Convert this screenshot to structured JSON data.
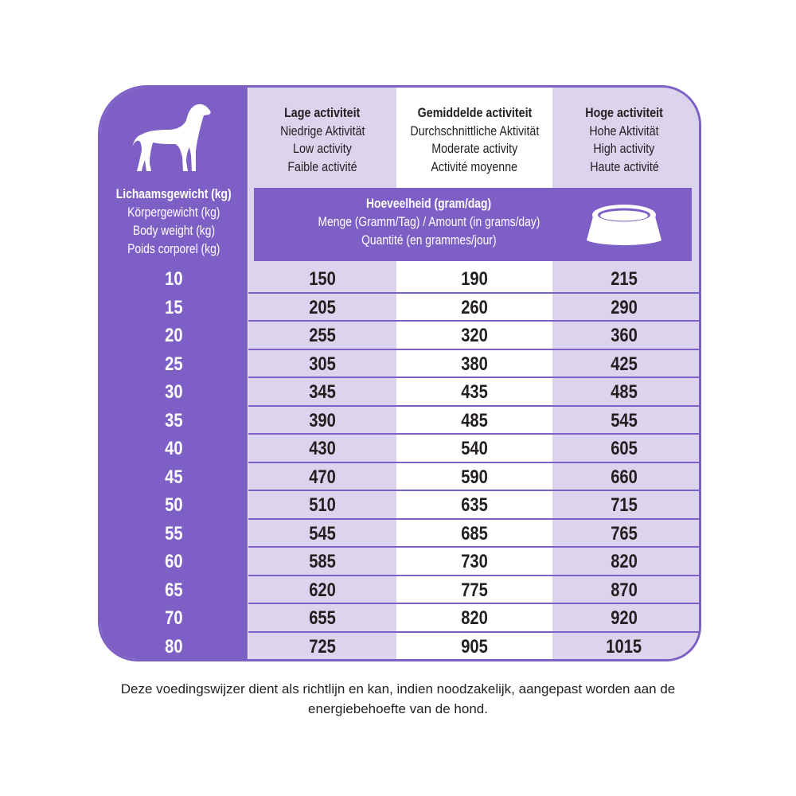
{
  "columns": [
    {
      "title": "Lage activiteit",
      "lines": [
        "Niedrige Aktivität",
        "Low activity",
        "Faible activité"
      ]
    },
    {
      "title": "Gemiddelde activiteit",
      "lines": [
        "Durchschnittliche Aktivität",
        "Moderate activity",
        "Activité moyenne"
      ]
    },
    {
      "title": "Hoge activiteit",
      "lines": [
        "Hohe Aktivität",
        "High activity",
        "Haute activité"
      ]
    }
  ],
  "weight_header": {
    "title": "Lichaamsgewicht (kg)",
    "lines": [
      "Körpergewicht (kg)",
      "Body weight (kg)",
      "Poids corporel (kg)"
    ]
  },
  "amount_header": {
    "title": "Hoeveelheid (gram/dag)",
    "lines": [
      "Menge (Gramm/Tag) / Amount (in grams/day)",
      "Quantité (en grammes/jour)"
    ]
  },
  "icons": {
    "header_left": "dog-icon",
    "band_right": "food-bowl-icon"
  },
  "colors": {
    "purple": "#7e5fc5",
    "lavender": "#dcd3ec"
  },
  "rows": [
    {
      "weight": "10",
      "low": "150",
      "moderate": "190",
      "high": "215"
    },
    {
      "weight": "15",
      "low": "205",
      "moderate": "260",
      "high": "290"
    },
    {
      "weight": "20",
      "low": "255",
      "moderate": "320",
      "high": "360"
    },
    {
      "weight": "25",
      "low": "305",
      "moderate": "380",
      "high": "425"
    },
    {
      "weight": "30",
      "low": "345",
      "moderate": "435",
      "high": "485"
    },
    {
      "weight": "35",
      "low": "390",
      "moderate": "485",
      "high": "545"
    },
    {
      "weight": "40",
      "low": "430",
      "moderate": "540",
      "high": "605"
    },
    {
      "weight": "45",
      "low": "470",
      "moderate": "590",
      "high": "660"
    },
    {
      "weight": "50",
      "low": "510",
      "moderate": "635",
      "high": "715"
    },
    {
      "weight": "55",
      "low": "545",
      "moderate": "685",
      "high": "765"
    },
    {
      "weight": "60",
      "low": "585",
      "moderate": "730",
      "high": "820"
    },
    {
      "weight": "65",
      "low": "620",
      "moderate": "775",
      "high": "870"
    },
    {
      "weight": "70",
      "low": "655",
      "moderate": "820",
      "high": "920"
    },
    {
      "weight": "80",
      "low": "725",
      "moderate": "905",
      "high": "1015"
    }
  ],
  "footnote": "Deze voedingswijzer dient als richtlijn en kan, indien noodzakelijk, aangepast worden aan de energiebehoefte van de hond."
}
